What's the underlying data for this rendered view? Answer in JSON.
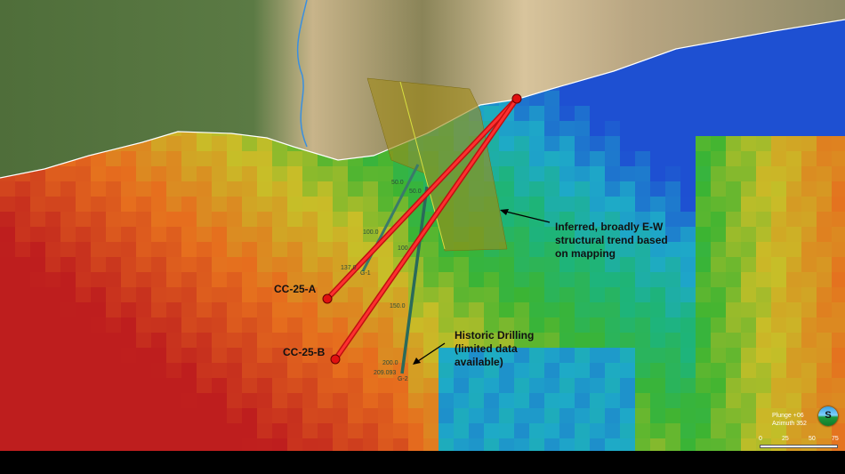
{
  "annotations": {
    "structural_trend": [
      "Inferred, broadly E-W",
      "structural trend based",
      "on mapping"
    ],
    "historic_drilling": [
      "Historic Drilling",
      "(limited data",
      "available)"
    ]
  },
  "drillholes": {
    "planned": [
      {
        "name": "CC-25-A",
        "color": "#ff1a1a"
      },
      {
        "name": "CC-25-B",
        "color": "#ff1a1a"
      }
    ],
    "historic": [
      {
        "name": "G-1",
        "depth_labels": [
          "50.0",
          "100.0",
          "137.0"
        ]
      },
      {
        "name": "G-2",
        "depth_labels": [
          "50.0",
          "100",
          "150.0",
          "200.0",
          "209.093"
        ]
      }
    ]
  },
  "view": {
    "plunge": "Plunge +06",
    "azimuth": "Azimuth 352",
    "compass_label": "S"
  },
  "scale_bar": {
    "ticks": [
      "0",
      "25",
      "50",
      "75"
    ]
  }
}
